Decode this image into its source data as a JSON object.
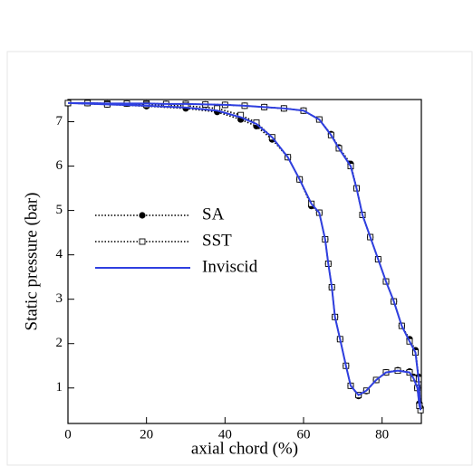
{
  "chart_data": {
    "type": "line",
    "x_label": "axial chord (%)",
    "y_label": "Static pressure (bar)",
    "x": [
      0,
      5,
      10,
      15,
      20,
      25,
      30,
      35,
      40,
      45,
      50,
      55,
      60,
      64,
      67,
      69,
      72,
      73.5,
      75,
      77,
      79,
      81,
      83,
      85,
      87,
      88.5,
      89.3,
      89.8,
      89.5,
      89,
      88,
      87,
      84,
      81,
      78.5,
      76,
      74,
      72,
      70.8,
      69.3,
      68,
      67.2,
      66.3,
      65.5,
      64,
      62,
      59,
      56,
      52,
      48,
      44,
      38,
      30,
      20,
      10,
      0
    ],
    "series": [
      {
        "name": "SA",
        "color": "#000000",
        "line_style": "dotted",
        "marker": "circle-filled",
        "values": [
          7.42,
          7.42,
          7.41,
          7.41,
          7.41,
          7.4,
          7.4,
          7.39,
          7.38,
          7.36,
          7.33,
          7.3,
          7.25,
          7.05,
          6.72,
          6.42,
          6.05,
          5.5,
          4.9,
          4.4,
          3.9,
          3.4,
          2.95,
          2.4,
          2.1,
          1.85,
          1.25,
          0.55,
          0.65,
          1.0,
          1.25,
          1.37,
          1.4,
          1.35,
          1.18,
          0.93,
          0.82,
          1.05,
          1.5,
          2.1,
          2.6,
          3.27,
          3.8,
          4.35,
          4.95,
          5.1,
          5.7,
          6.2,
          6.6,
          6.9,
          7.05,
          7.22,
          7.3,
          7.35,
          7.39,
          7.42
        ]
      },
      {
        "name": "SST",
        "color": "#000000",
        "line_style": "dotted",
        "marker": "square-open",
        "values": [
          7.42,
          7.42,
          7.41,
          7.41,
          7.41,
          7.4,
          7.4,
          7.39,
          7.38,
          7.36,
          7.33,
          7.3,
          7.25,
          7.05,
          6.7,
          6.4,
          6.0,
          5.5,
          4.9,
          4.4,
          3.9,
          3.4,
          2.95,
          2.4,
          2.05,
          1.8,
          1.2,
          0.5,
          0.6,
          1.0,
          1.22,
          1.35,
          1.39,
          1.35,
          1.18,
          0.94,
          0.84,
          1.05,
          1.5,
          2.1,
          2.6,
          3.27,
          3.8,
          4.35,
          4.95,
          5.15,
          5.7,
          6.2,
          6.65,
          6.98,
          7.15,
          7.3,
          7.36,
          7.38,
          7.39,
          7.42
        ]
      },
      {
        "name": "Inviscid",
        "color": "#2f3fe0",
        "line_style": "solid",
        "marker": "none",
        "values": [
          7.42,
          7.42,
          7.41,
          7.41,
          7.41,
          7.4,
          7.4,
          7.39,
          7.38,
          7.36,
          7.33,
          7.3,
          7.25,
          7.05,
          6.7,
          6.4,
          6.0,
          5.5,
          4.9,
          4.4,
          3.9,
          3.4,
          2.95,
          2.4,
          2.05,
          1.8,
          1.2,
          0.5,
          0.6,
          1.0,
          1.22,
          1.35,
          1.39,
          1.35,
          1.18,
          0.94,
          0.84,
          1.05,
          1.5,
          2.1,
          2.6,
          3.27,
          3.8,
          4.35,
          4.95,
          5.15,
          5.7,
          6.2,
          6.65,
          6.95,
          7.1,
          7.25,
          7.32,
          7.36,
          7.39,
          7.42
        ]
      }
    ],
    "xlim": [
      0,
      90
    ],
    "xticks": [
      0,
      20,
      40,
      60,
      80
    ],
    "ylim": [
      0.2,
      7.5
    ],
    "yticks": [
      1,
      2,
      3,
      4,
      5,
      6,
      7
    ],
    "legend": "left",
    "grid": false
  }
}
